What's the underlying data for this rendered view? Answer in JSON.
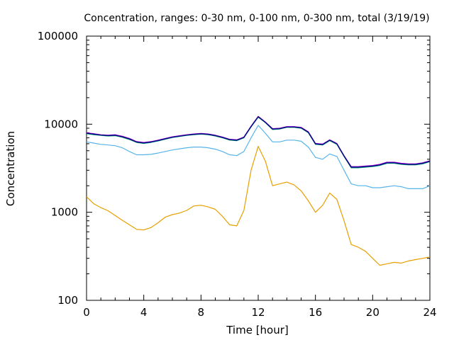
{
  "chart_data": {
    "type": "line",
    "title": "Concentration, ranges: 0-30 nm, 0-100 nm, 0-300 nm, total (3/19/19)",
    "xlabel": "Time [hour]",
    "ylabel": "Concentration",
    "xlim": [
      0,
      24
    ],
    "ylim": [
      100,
      100000
    ],
    "yscale": "log",
    "grid": false,
    "legend": "none",
    "x_ticks": [
      "0",
      "4",
      "8",
      "12",
      "16",
      "20",
      "24"
    ],
    "y_ticks": [
      "100",
      "1000",
      "10000",
      "100000"
    ],
    "series": [
      {
        "color": "#e69f00",
        "x": [
          0,
          0.5,
          1,
          1.5,
          2,
          2.5,
          3,
          3.5,
          4,
          4.5,
          5,
          5.5,
          6,
          6.5,
          7,
          7.5,
          8,
          8.5,
          9,
          9.5,
          10,
          10.5,
          11,
          11.5,
          12,
          12.5,
          13,
          13.5,
          14,
          14.5,
          15,
          15.5,
          16,
          16.5,
          17,
          17.5,
          18,
          18.5,
          19,
          19.5,
          20,
          20.5,
          21,
          21.5,
          22,
          22.5,
          23,
          23.5,
          24
        ],
        "y": [
          1500,
          1250,
          1130,
          1040,
          920,
          810,
          720,
          640,
          630,
          670,
          760,
          880,
          940,
          980,
          1050,
          1180,
          1200,
          1150,
          1080,
          900,
          720,
          700,
          1050,
          3000,
          5600,
          3800,
          2000,
          2100,
          2200,
          2050,
          1750,
          1350,
          1000,
          1200,
          1650,
          1400,
          800,
          430,
          400,
          360,
          300,
          250,
          260,
          270,
          265,
          280,
          290,
          300,
          310
        ]
      },
      {
        "color": "#56b4e9",
        "x": [
          0,
          0.5,
          1,
          1.5,
          2,
          2.5,
          3,
          3.5,
          4,
          4.5,
          5,
          5.5,
          6,
          6.5,
          7,
          7.5,
          8,
          8.5,
          9,
          9.5,
          10,
          10.5,
          11,
          11.5,
          12,
          12.5,
          13,
          13.5,
          14,
          14.5,
          15,
          15.5,
          16,
          16.5,
          17,
          17.5,
          18,
          18.5,
          19,
          19.5,
          20,
          20.5,
          21,
          21.5,
          22,
          22.5,
          23,
          23.5,
          24
        ],
        "y": [
          6300,
          6100,
          5900,
          5800,
          5700,
          5400,
          4900,
          4500,
          4500,
          4550,
          4700,
          4900,
          5100,
          5250,
          5400,
          5500,
          5500,
          5400,
          5200,
          4900,
          4500,
          4400,
          4900,
          7000,
          9700,
          7900,
          6300,
          6300,
          6600,
          6600,
          6400,
          5500,
          4200,
          4000,
          4600,
          4300,
          3000,
          2100,
          2000,
          2000,
          1900,
          1900,
          1950,
          2000,
          1950,
          1850,
          1850,
          1850,
          2000
        ]
      },
      {
        "color": "#009e73",
        "x": [
          0,
          0.5,
          1,
          1.5,
          2,
          2.5,
          3,
          3.5,
          4,
          4.5,
          5,
          5.5,
          6,
          6.5,
          7,
          7.5,
          8,
          8.5,
          9,
          9.5,
          10,
          10.5,
          11,
          11.5,
          12,
          12.5,
          13,
          13.5,
          14,
          14.5,
          15,
          15.5,
          16,
          16.5,
          17,
          17.5,
          18,
          18.5,
          19,
          19.5,
          20,
          20.5,
          21,
          21.5,
          22,
          22.5,
          23,
          23.5,
          24
        ],
        "y": [
          7800,
          7600,
          7450,
          7350,
          7400,
          7100,
          6700,
          6200,
          6050,
          6200,
          6450,
          6750,
          7050,
          7250,
          7450,
          7600,
          7700,
          7600,
          7350,
          7000,
          6600,
          6500,
          7000,
          9300,
          12000,
          10400,
          8700,
          8800,
          9200,
          9200,
          9000,
          8000,
          5900,
          5800,
          6500,
          5900,
          4300,
          3200,
          3200,
          3250,
          3300,
          3400,
          3600,
          3600,
          3500,
          3450,
          3450,
          3550,
          3750
        ]
      },
      {
        "color": "#9400d3",
        "x": [
          0,
          0.5,
          1,
          1.5,
          2,
          2.5,
          3,
          3.5,
          4,
          4.5,
          5,
          5.5,
          6,
          6.5,
          7,
          7.5,
          8,
          8.5,
          9,
          9.5,
          10,
          10.5,
          11,
          11.5,
          12,
          12.5,
          13,
          13.5,
          14,
          14.5,
          15,
          15.5,
          16,
          16.5,
          17,
          17.5,
          18,
          18.5,
          19,
          19.5,
          20,
          20.5,
          21,
          21.5,
          22,
          22.5,
          23,
          23.5,
          24
        ],
        "y": [
          8000,
          7800,
          7600,
          7500,
          7600,
          7300,
          6900,
          6350,
          6200,
          6350,
          6600,
          6900,
          7200,
          7400,
          7600,
          7750,
          7850,
          7750,
          7500,
          7150,
          6750,
          6650,
          7150,
          9500,
          12300,
          10600,
          8900,
          9000,
          9400,
          9400,
          9200,
          8200,
          6050,
          5950,
          6650,
          6050,
          4400,
          3300,
          3300,
          3350,
          3400,
          3500,
          3700,
          3700,
          3600,
          3550,
          3550,
          3650,
          3850
        ]
      },
      {
        "color": "#000080",
        "x": [
          0,
          0.5,
          1,
          1.5,
          2,
          2.5,
          3,
          3.5,
          4,
          4.5,
          5,
          5.5,
          6,
          6.5,
          7,
          7.5,
          8,
          8.5,
          9,
          9.5,
          10,
          10.5,
          11,
          11.5,
          12,
          12.5,
          13,
          13.5,
          14,
          14.5,
          15,
          15.5,
          16,
          16.5,
          17,
          17.5,
          18,
          18.5,
          19,
          19.5,
          20,
          20.5,
          21,
          21.5,
          22,
          22.5,
          23,
          23.5,
          24
        ],
        "y": [
          7900,
          7700,
          7520,
          7420,
          7500,
          7200,
          6800,
          6280,
          6120,
          6280,
          6520,
          6820,
          7120,
          7320,
          7520,
          7680,
          7780,
          7680,
          7420,
          7080,
          6680,
          6580,
          7080,
          9400,
          12150,
          10500,
          8800,
          8900,
          9300,
          9300,
          9100,
          8100,
          5980,
          5880,
          6580,
          5980,
          4350,
          3250,
          3250,
          3300,
          3350,
          3450,
          3650,
          3650,
          3550,
          3500,
          3500,
          3600,
          3800
        ]
      }
    ]
  }
}
